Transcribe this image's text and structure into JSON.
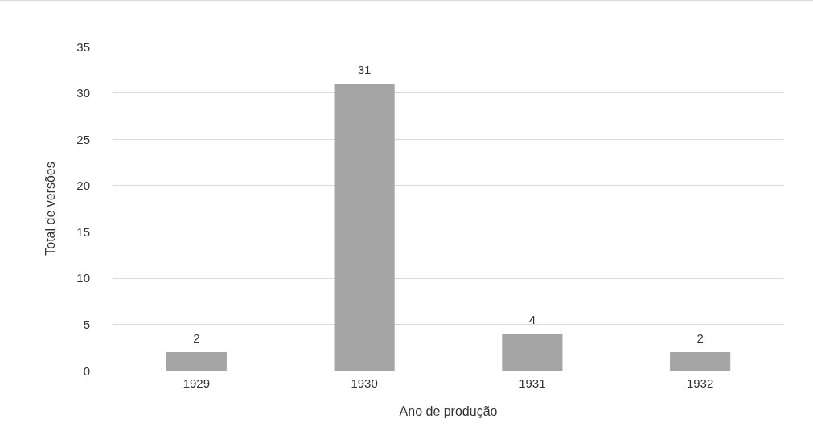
{
  "chart_data": {
    "type": "bar",
    "xlabel": "Ano de produção",
    "ylabel": "Total de versões",
    "categories": [
      "1929",
      "1930",
      "1931",
      "1932"
    ],
    "values": [
      2,
      31,
      4,
      2
    ],
    "color": "#a5a5a5",
    "ylim": [
      0,
      35
    ],
    "yticks": [
      0,
      5,
      10,
      15,
      20,
      25,
      30,
      35
    ],
    "grid": "y",
    "data_labels": true
  }
}
